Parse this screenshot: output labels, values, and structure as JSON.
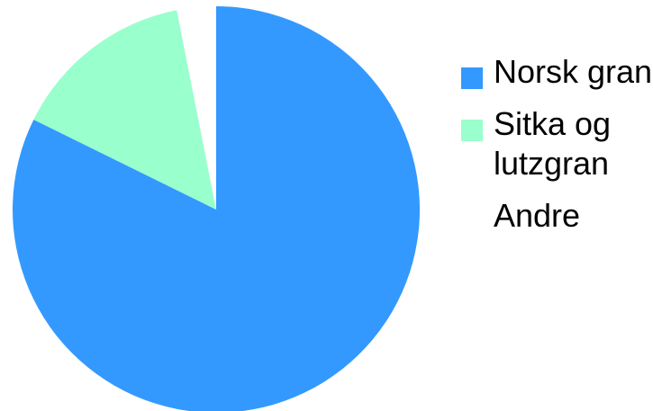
{
  "chart_data": {
    "type": "pie",
    "title": "",
    "categories": [
      "Norsk gran",
      "Sitka og lutzgran",
      "Andre"
    ],
    "values": [
      82.3,
      14.6,
      3.1
    ],
    "colors": [
      "#3399ff",
      "#99ffcc",
      "#ffffff"
    ],
    "start_angle_deg": 0,
    "direction": "clockwise",
    "legend_position": "right"
  }
}
